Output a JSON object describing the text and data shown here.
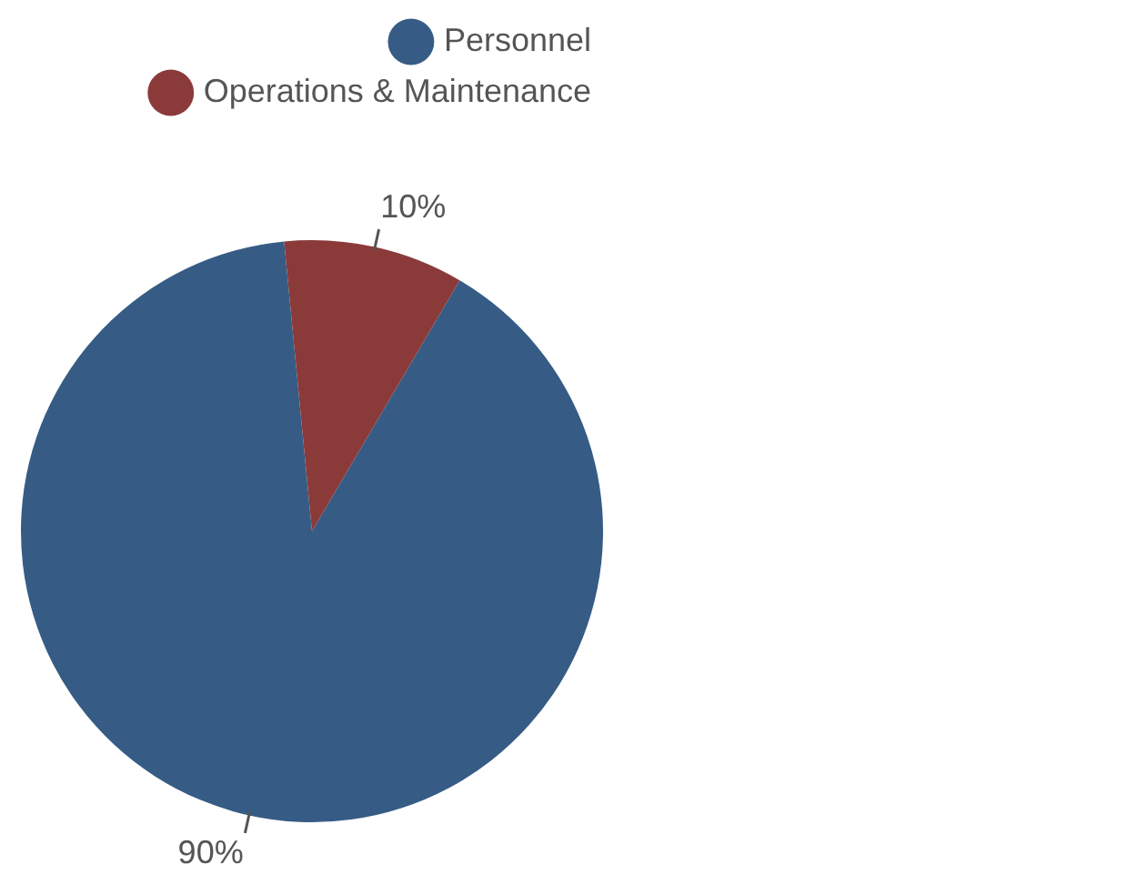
{
  "chart_data": {
    "type": "pie",
    "categories": [
      "Personnel",
      "Operations & Maintenance"
    ],
    "values": [
      90,
      10
    ],
    "colors": [
      "#365c85",
      "#8b3a3a"
    ],
    "legend": "top right",
    "value_labels": [
      "90%",
      "10%"
    ]
  }
}
